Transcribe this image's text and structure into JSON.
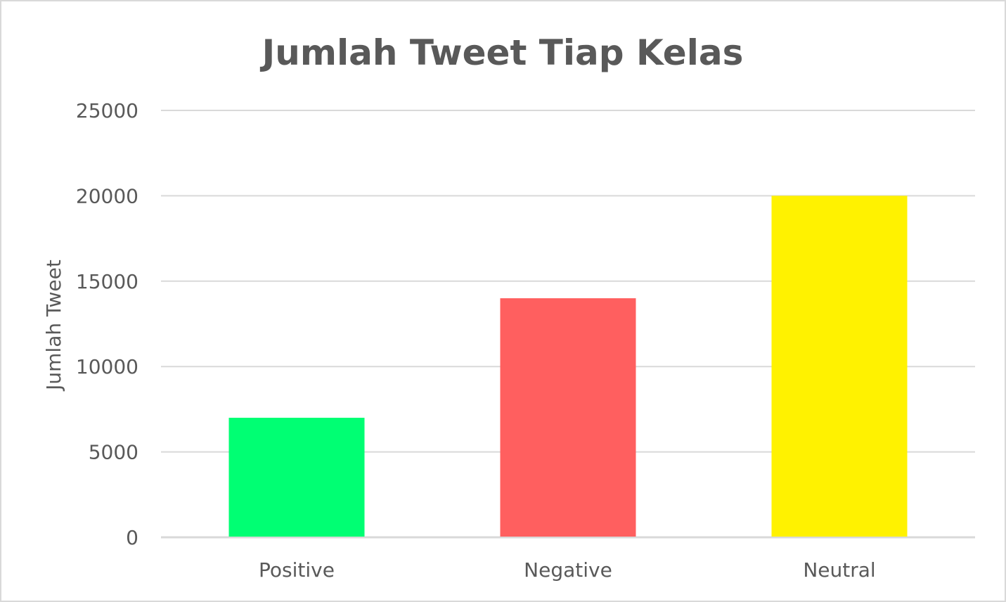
{
  "chart_data": {
    "type": "bar",
    "title": "Jumlah Tweet Tiap Kelas",
    "xlabel": "",
    "ylabel": "Jumlah Tweet",
    "categories": [
      "Positive",
      "Negative",
      "Neutral"
    ],
    "values": [
      7000,
      14000,
      20000
    ],
    "colors": [
      "#00ff73",
      "#ff5f5f",
      "#fff200"
    ],
    "ylim": [
      0,
      25000
    ],
    "yticks": [
      0,
      5000,
      10000,
      15000,
      20000,
      25000
    ],
    "ytick_labels": [
      "0",
      "5000",
      "10000",
      "15000",
      "20000",
      "25000"
    ],
    "grid": true,
    "legend": "none"
  }
}
